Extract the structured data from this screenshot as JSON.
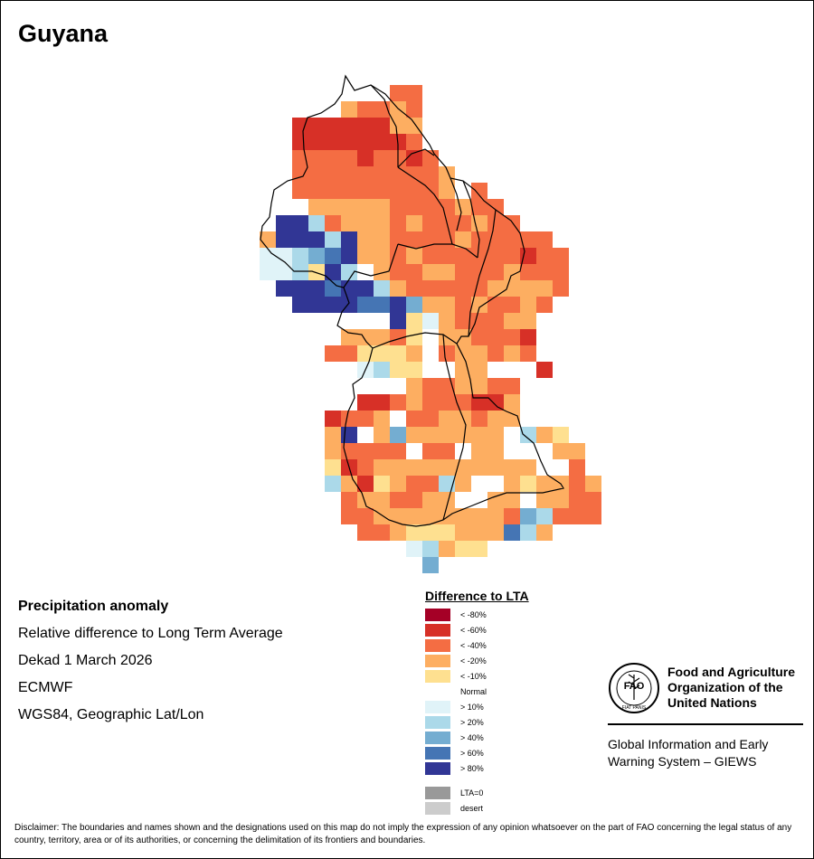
{
  "title": "Guyana",
  "meta": {
    "heading": "Precipitation anomaly",
    "subtitle": "Relative difference to Long Term Average",
    "period": "Dekad 1 March 2026",
    "model": "ECMWF",
    "projection": "WGS84, Geographic Lat/Lon"
  },
  "legend": {
    "title": "Difference to LTA",
    "classes": [
      {
        "label": "< -80%",
        "color": "#a50026"
      },
      {
        "label": "< -60%",
        "color": "#d73027"
      },
      {
        "label": "< -40%",
        "color": "#f46d43"
      },
      {
        "label": "< -20%",
        "color": "#fdae61"
      },
      {
        "label": "< -10%",
        "color": "#fee090"
      },
      {
        "label": "Normal",
        "color": "#ffffff"
      },
      {
        "label": "> 10%",
        "color": "#e0f3f8"
      },
      {
        "label": "> 20%",
        "color": "#abd9e9"
      },
      {
        "label": "> 40%",
        "color": "#74add1"
      },
      {
        "label": "> 60%",
        "color": "#4575b4"
      },
      {
        "label": "> 80%",
        "color": "#313695"
      }
    ],
    "extra": [
      {
        "label": "LTA=0",
        "color": "#999999"
      },
      {
        "label": "desert",
        "color": "#cccccc"
      }
    ]
  },
  "logo": {
    "org_line1": "Food and Agriculture",
    "org_line2": "Organization of the",
    "org_line3": "United Nations",
    "emblem_text": "FAO",
    "emblem_motto": "FIAT PANIS",
    "system_line1": "Global Information and Early",
    "system_line2": "Warning System – GIEWS"
  },
  "disclaimer": "Disclaimer: The boundaries and names shown and the designations used on this map do not imply the expression of any opinion whatsoever on the part of FAO concerning the legal status of any country, territory, area or of its authorities, or concerning the delimitation of its frontiers and boundaries.",
  "grid": {
    "codes": "A=< -80%, B=< -60%, C=< -40%, D=< -20%, E=< -10%, N=Normal, F=> 10%, G=> 20%, H=> 40%, I=> 60%, J=> 80%",
    "rows": [
      "........CC.........",
      ".....DCCDC.........",
      "..BBBBBBDD.........",
      "..BBBBBBBC.........",
      "..CCCCBCCBC........",
      "..CCCCCCCCCD.......",
      "..CCCCCCCCCDNC.....",
      "...DDDDDCCCCDCC....",
      ".JJGCDDDCDCCCDCC...",
      "DJJJGJDDCCCCDCCCCC.",
      "FFGHIJDDCDCCCCCCBCC",
      "FFGEJGNDCCDDCCCDCCC",
      ".JJJIJJGDCCCCCDDDDC",
      "..JJJJIIJHDDCDCCDC.",
      "........JEFDCCCDD..",
      ".....DDDCENDDCCCB..",
      "....CCEEEDNCDDCDC..",
      "......FGEENNDDNNNB.",
      ".........DCCDDCC...",
      "......BBCDCCCBBD...",
      "....BCCDNCCDDCDD...",
      "....DJNDHDDDDDDNGDE",
      "....DCCCCNCCNDDNNNDDN",
      "....EBCDDDDDDDDDDNNC",
      "....GDBEDCCGDNNDEDDCD",
      ".....CDDCCDDNNDDNDDCC",
      ".....CCDDDDDDDDCHGCCC",
      "......CCDEEEDDDIGD...",
      ".........FGDEE.......",
      "..........H.........."
    ]
  }
}
